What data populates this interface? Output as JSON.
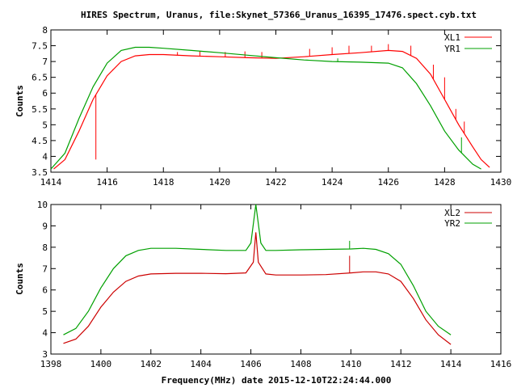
{
  "chart_data": [
    {
      "type": "line",
      "title": "HIRES Spectrum, Uranus, file:Skynet_57366_Uranus_16395_17476.spect.cyb.txt",
      "xlabel": "",
      "ylabel": "Counts",
      "xlim": [
        1414,
        1430
      ],
      "ylim": [
        3.5,
        8
      ],
      "x_ticks": [
        1414,
        1416,
        1418,
        1420,
        1422,
        1424,
        1426,
        1428,
        1430
      ],
      "y_ticks": [
        3.5,
        4,
        4.5,
        5,
        5.5,
        6,
        6.5,
        7,
        7.5,
        8
      ],
      "legend_position": "top-right",
      "grid": false,
      "series": [
        {
          "name": "XL1",
          "color": "#ff0000",
          "x": [
            1414.1,
            1414.5,
            1415,
            1415.5,
            1416,
            1416.5,
            1417,
            1417.5,
            1418,
            1419,
            1420,
            1421,
            1422,
            1423,
            1424,
            1425,
            1426,
            1426.5,
            1427,
            1427.5,
            1428,
            1428.5,
            1429,
            1429.3,
            1429.6
          ],
          "values": [
            3.6,
            3.9,
            4.8,
            5.8,
            6.55,
            7.0,
            7.18,
            7.22,
            7.22,
            7.18,
            7.15,
            7.12,
            7.1,
            7.15,
            7.22,
            7.28,
            7.35,
            7.32,
            7.1,
            6.6,
            5.8,
            5.0,
            4.3,
            3.9,
            3.65
          ],
          "spikes": [
            {
              "x": 1415.6,
              "y": 3.9
            },
            {
              "x": 1416.2,
              "y": 6.75
            },
            {
              "x": 1418.5,
              "y": 7.3
            },
            {
              "x": 1419.3,
              "y": 7.32
            },
            {
              "x": 1420.2,
              "y": 7.3
            },
            {
              "x": 1420.9,
              "y": 7.32
            },
            {
              "x": 1421.5,
              "y": 7.3
            },
            {
              "x": 1423.2,
              "y": 7.4
            },
            {
              "x": 1424.0,
              "y": 7.45
            },
            {
              "x": 1424.6,
              "y": 7.5
            },
            {
              "x": 1425.4,
              "y": 7.5
            },
            {
              "x": 1426.0,
              "y": 7.55
            },
            {
              "x": 1426.8,
              "y": 7.5
            },
            {
              "x": 1427.6,
              "y": 6.9
            },
            {
              "x": 1428.0,
              "y": 6.5
            },
            {
              "x": 1428.4,
              "y": 5.5
            },
            {
              "x": 1428.7,
              "y": 5.1
            }
          ]
        },
        {
          "name": "YR1",
          "color": "#00a000",
          "x": [
            1414.0,
            1414.5,
            1415,
            1415.5,
            1416,
            1416.5,
            1417,
            1417.5,
            1418,
            1419,
            1420,
            1421,
            1422,
            1423,
            1424,
            1425,
            1426,
            1426.5,
            1427,
            1427.5,
            1428,
            1428.5,
            1429,
            1429.3
          ],
          "values": [
            3.6,
            4.1,
            5.2,
            6.2,
            6.95,
            7.35,
            7.45,
            7.45,
            7.42,
            7.35,
            7.28,
            7.2,
            7.12,
            7.05,
            7.0,
            6.98,
            6.95,
            6.8,
            6.3,
            5.6,
            4.8,
            4.2,
            3.75,
            3.6
          ],
          "spikes": [
            {
              "x": 1424.2,
              "y": 7.1
            },
            {
              "x": 1428.6,
              "y": 4.6
            }
          ]
        }
      ]
    },
    {
      "type": "line",
      "title": "",
      "xlabel": "Frequency(MHz) date 2015-12-10T22:24:44.000",
      "ylabel": "Counts",
      "xlim": [
        1398,
        1416
      ],
      "ylim": [
        3,
        10
      ],
      "x_ticks": [
        1398,
        1400,
        1402,
        1404,
        1406,
        1408,
        1410,
        1412,
        1414,
        1416
      ],
      "y_ticks": [
        3,
        4,
        5,
        6,
        7,
        8,
        9,
        10
      ],
      "legend_position": "top-right",
      "grid": false,
      "series": [
        {
          "name": "XL2",
          "color": "#cc0000",
          "x": [
            1398.5,
            1399,
            1399.5,
            1400,
            1400.5,
            1401,
            1401.5,
            1402,
            1403,
            1404,
            1405,
            1405.8,
            1406.1,
            1406.2,
            1406.3,
            1406.6,
            1407,
            1408,
            1409,
            1410,
            1410.5,
            1411,
            1411.5,
            1412,
            1412.5,
            1413,
            1413.5,
            1414
          ],
          "values": [
            3.5,
            3.7,
            4.3,
            5.2,
            5.9,
            6.4,
            6.65,
            6.75,
            6.78,
            6.78,
            6.76,
            6.8,
            7.3,
            8.7,
            7.3,
            6.75,
            6.7,
            6.7,
            6.72,
            6.8,
            6.85,
            6.85,
            6.75,
            6.4,
            5.6,
            4.6,
            3.9,
            3.45
          ],
          "spikes": [
            {
              "x": 1409.95,
              "y": 7.6
            }
          ]
        },
        {
          "name": "YR2",
          "color": "#00a000",
          "x": [
            1398.5,
            1399,
            1399.5,
            1400,
            1400.5,
            1401,
            1401.5,
            1402,
            1403,
            1404,
            1405,
            1405.8,
            1406.0,
            1406.2,
            1406.4,
            1406.6,
            1407,
            1408,
            1409,
            1410,
            1410.5,
            1411,
            1411.5,
            1412,
            1412.5,
            1413,
            1413.5,
            1414
          ],
          "values": [
            3.9,
            4.2,
            5.0,
            6.1,
            7.0,
            7.6,
            7.85,
            7.95,
            7.95,
            7.9,
            7.85,
            7.85,
            8.2,
            10.0,
            8.2,
            7.85,
            7.85,
            7.88,
            7.9,
            7.92,
            7.95,
            7.9,
            7.7,
            7.2,
            6.2,
            5.0,
            4.3,
            3.9
          ],
          "spikes": [
            {
              "x": 1409.95,
              "y": 8.3
            }
          ]
        }
      ]
    }
  ]
}
